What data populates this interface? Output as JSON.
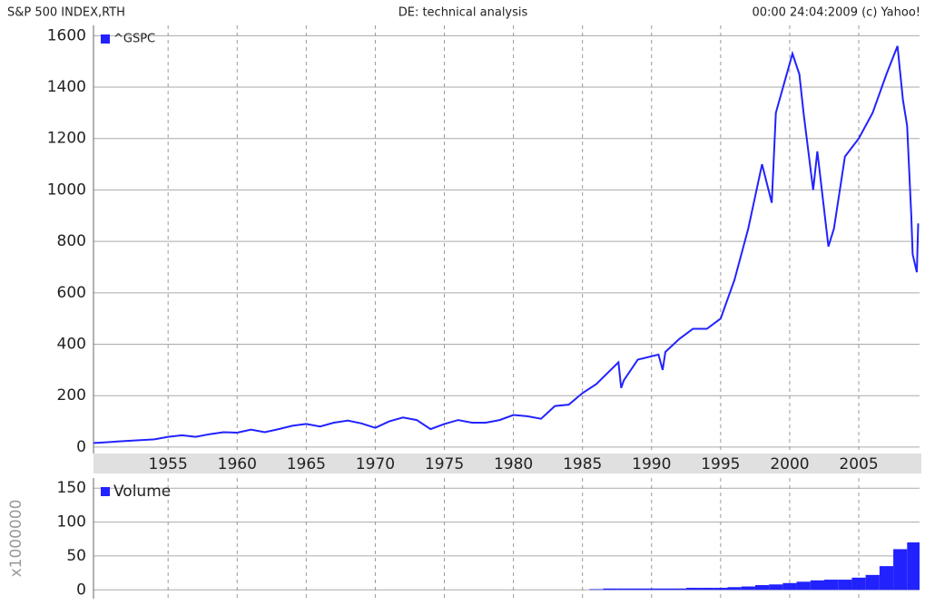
{
  "header": {
    "left": "S&P 500 INDEX,RTH",
    "center": "DE: technical analysis",
    "right": "00:00 24:04:2009 (c) Yahoo!"
  },
  "chart_data": [
    {
      "type": "line",
      "x": [
        1949.6,
        1950,
        1952,
        1954,
        1955,
        1956,
        1957,
        1958,
        1959,
        1960,
        1961,
        1962,
        1963,
        1964,
        1965,
        1966,
        1967,
        1968,
        1969,
        1970,
        1971,
        1972,
        1973,
        1974,
        1975,
        1976,
        1977,
        1978,
        1979,
        1980,
        1981,
        1982,
        1983,
        1984,
        1985,
        1986,
        1987.6,
        1987.8,
        1988,
        1989,
        1990.5,
        1990.8,
        1991,
        1992,
        1993,
        1994,
        1995,
        1996,
        1997,
        1998,
        1998.7,
        1999,
        2000.2,
        2000.7,
        2001,
        2001.7,
        2002,
        2002.8,
        2003.2,
        2004,
        2005,
        2006,
        2007,
        2007.8,
        2008.2,
        2008.5,
        2008.8,
        2008.9,
        2009.2,
        2009.3
      ],
      "series": [
        {
          "name": "^GSPC",
          "color": "#2222ff",
          "values": [
            16,
            17,
            24,
            30,
            40,
            46,
            40,
            50,
            58,
            56,
            68,
            58,
            70,
            83,
            90,
            80,
            95,
            103,
            92,
            75,
            100,
            115,
            105,
            70,
            90,
            105,
            95,
            95,
            105,
            125,
            120,
            110,
            160,
            165,
            210,
            245,
            330,
            230,
            260,
            340,
            360,
            300,
            370,
            420,
            460,
            460,
            500,
            650,
            850,
            1100,
            950,
            1300,
            1530,
            1450,
            1300,
            1000,
            1150,
            780,
            850,
            1130,
            1200,
            1300,
            1450,
            1560,
            1350,
            1250,
            900,
            750,
            680,
            870
          ]
        }
      ],
      "xlim": [
        1949.6,
        2009.4
      ],
      "xticks": [
        1955,
        1960,
        1965,
        1970,
        1975,
        1980,
        1985,
        1990,
        1995,
        2000,
        2005
      ],
      "ylim": [
        -25,
        1640
      ],
      "yticks": [
        0,
        200,
        400,
        600,
        800,
        1000,
        1200,
        1400,
        1600
      ],
      "grid": true
    },
    {
      "type": "bar",
      "y_label": "x1000000",
      "x": [
        1986,
        1987,
        1988,
        1989,
        1990,
        1991,
        1992,
        1993,
        1994,
        1995,
        1996,
        1997,
        1998,
        1999,
        2000,
        2001,
        2002,
        2003,
        2004,
        2005,
        2006,
        2007,
        2008,
        2009
      ],
      "series": [
        {
          "name": "Volume",
          "color": "#2222ff",
          "values": [
            1,
            2,
            2,
            2,
            2,
            2,
            2,
            3,
            3,
            3,
            4,
            5,
            7,
            8,
            10,
            12,
            14,
            15,
            15,
            18,
            22,
            35,
            60,
            70
          ]
        }
      ],
      "xlim": [
        1949.6,
        2009.4
      ],
      "xticks": [
        1955,
        1960,
        1965,
        1970,
        1975,
        1980,
        1985,
        1990,
        1995,
        2000,
        2005
      ],
      "ylim": [
        -13,
        165
      ],
      "yticks": [
        0,
        50,
        100,
        150
      ],
      "grid": true
    }
  ]
}
